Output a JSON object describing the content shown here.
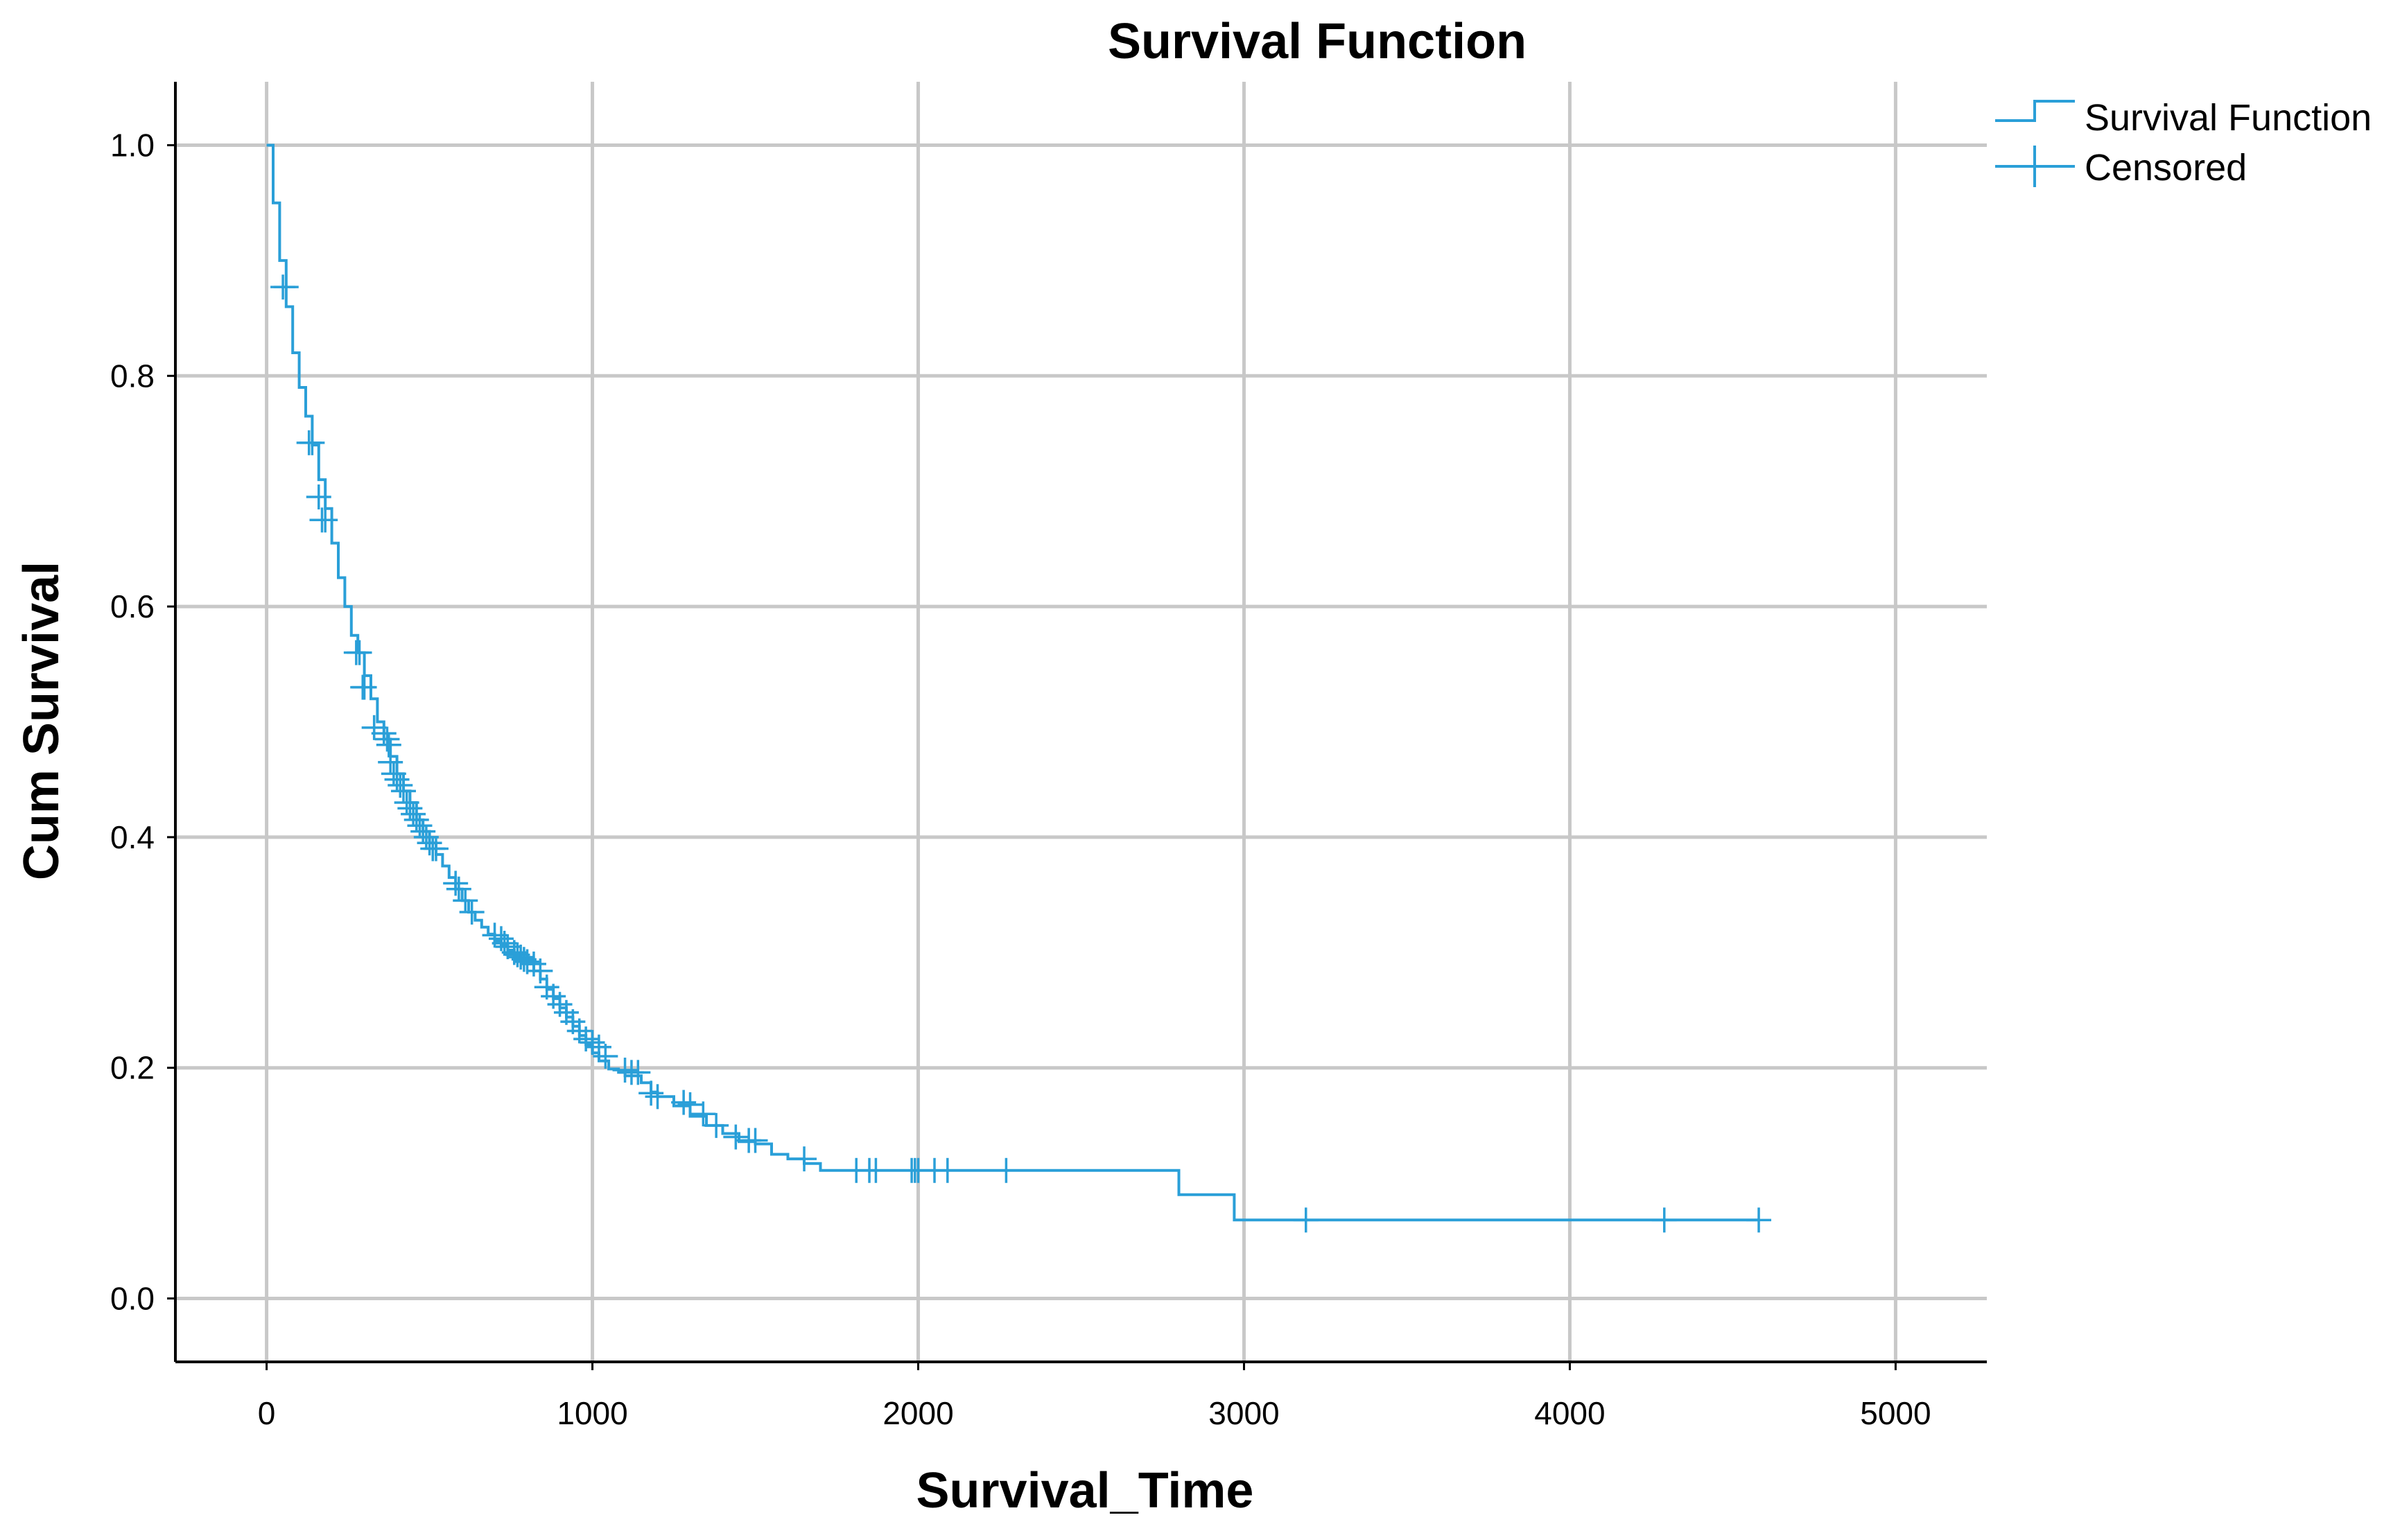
{
  "chart_data": {
    "type": "line",
    "title": "Survival Function",
    "xlabel": "Survival_Time",
    "ylabel": "Cum Survival",
    "xlim": [
      -280,
      5280
    ],
    "ylim": [
      -0.055,
      1.055
    ],
    "x_ticks": [
      0,
      1000,
      2000,
      3000,
      4000,
      5000
    ],
    "x_tick_labels": [
      "0",
      "1000",
      "2000",
      "3000",
      "4000",
      "5000"
    ],
    "y_ticks": [
      0.0,
      0.2,
      0.4,
      0.6,
      0.8,
      1.0
    ],
    "y_tick_labels": [
      "0.0",
      "0.2",
      "0.4",
      "0.6",
      "0.8",
      "1.0"
    ],
    "grid": true,
    "legend_position": "top-right",
    "colors": {
      "survival_line": "#2a9fd8",
      "censor_mark": "#2a9fd8",
      "grid": "#c8c8c8",
      "axis": "#000000"
    },
    "series": [
      {
        "name": "Survival Function",
        "style": "step",
        "x": [
          0,
          20,
          40,
          60,
          80,
          100,
          120,
          140,
          160,
          180,
          200,
          220,
          240,
          260,
          280,
          300,
          320,
          340,
          360,
          380,
          400,
          420,
          440,
          460,
          480,
          500,
          520,
          540,
          560,
          580,
          600,
          620,
          640,
          660,
          680,
          700,
          720,
          740,
          760,
          780,
          800,
          820,
          840,
          860,
          880,
          900,
          920,
          940,
          960,
          980,
          1000,
          1020,
          1050,
          1080,
          1100,
          1150,
          1180,
          1200,
          1250,
          1300,
          1350,
          1400,
          1450,
          1500,
          1550,
          1600,
          1650,
          1700,
          1750,
          1800,
          2000,
          2500,
          2800,
          2970,
          3200,
          4000,
          4580
        ],
        "y": [
          1.0,
          0.95,
          0.9,
          0.86,
          0.82,
          0.79,
          0.765,
          0.74,
          0.71,
          0.685,
          0.655,
          0.625,
          0.6,
          0.575,
          0.56,
          0.54,
          0.52,
          0.5,
          0.485,
          0.47,
          0.455,
          0.44,
          0.43,
          0.415,
          0.405,
          0.395,
          0.385,
          0.375,
          0.365,
          0.355,
          0.345,
          0.335,
          0.328,
          0.322,
          0.316,
          0.31,
          0.306,
          0.302,
          0.298,
          0.294,
          0.29,
          0.284,
          0.277,
          0.268,
          0.26,
          0.252,
          0.244,
          0.236,
          0.228,
          0.22,
          0.213,
          0.206,
          0.199,
          0.196,
          0.193,
          0.187,
          0.179,
          0.175,
          0.167,
          0.158,
          0.15,
          0.143,
          0.136,
          0.134,
          0.125,
          0.121,
          0.117,
          0.111,
          0.111,
          0.111,
          0.111,
          0.111,
          0.09,
          0.068,
          0.068,
          0.068,
          0.068
        ]
      },
      {
        "name": "Censored",
        "style": "marker-plus",
        "x": [
          50,
          60,
          130,
          140,
          160,
          170,
          180,
          275,
          285,
          295,
          300,
          330,
          360,
          370,
          375,
          380,
          390,
          400,
          410,
          420,
          430,
          440,
          450,
          460,
          470,
          480,
          490,
          500,
          510,
          520,
          580,
          590,
          610,
          630,
          700,
          720,
          730,
          740,
          760,
          770,
          780,
          790,
          800,
          820,
          840,
          860,
          880,
          900,
          920,
          940,
          960,
          980,
          1000,
          1020,
          1040,
          1100,
          1120,
          1140,
          1180,
          1200,
          1280,
          1300,
          1340,
          1380,
          1440,
          1480,
          1500,
          1650,
          1810,
          1850,
          1870,
          1980,
          1990,
          2000,
          2050,
          2090,
          2270,
          3190,
          4290,
          4580
        ],
        "y": [
          0.877,
          0.877,
          0.742,
          0.742,
          0.695,
          0.675,
          0.675,
          0.56,
          0.56,
          0.53,
          0.53,
          0.495,
          0.49,
          0.485,
          0.48,
          0.465,
          0.455,
          0.45,
          0.445,
          0.44,
          0.43,
          0.425,
          0.42,
          0.415,
          0.41,
          0.405,
          0.4,
          0.395,
          0.39,
          0.39,
          0.36,
          0.355,
          0.345,
          0.335,
          0.315,
          0.312,
          0.308,
          0.305,
          0.3,
          0.298,
          0.296,
          0.294,
          0.292,
          0.29,
          0.284,
          0.27,
          0.262,
          0.255,
          0.248,
          0.24,
          0.232,
          0.225,
          0.222,
          0.218,
          0.21,
          0.198,
          0.196,
          0.196,
          0.178,
          0.175,
          0.17,
          0.168,
          0.16,
          0.15,
          0.14,
          0.137,
          0.137,
          0.121,
          0.111,
          0.111,
          0.111,
          0.111,
          0.111,
          0.111,
          0.111,
          0.111,
          0.111,
          0.068,
          0.068,
          0.068
        ]
      }
    ],
    "legend": [
      {
        "label": "Survival Function",
        "symbol": "step"
      },
      {
        "label": "Censored",
        "symbol": "plus"
      }
    ]
  }
}
